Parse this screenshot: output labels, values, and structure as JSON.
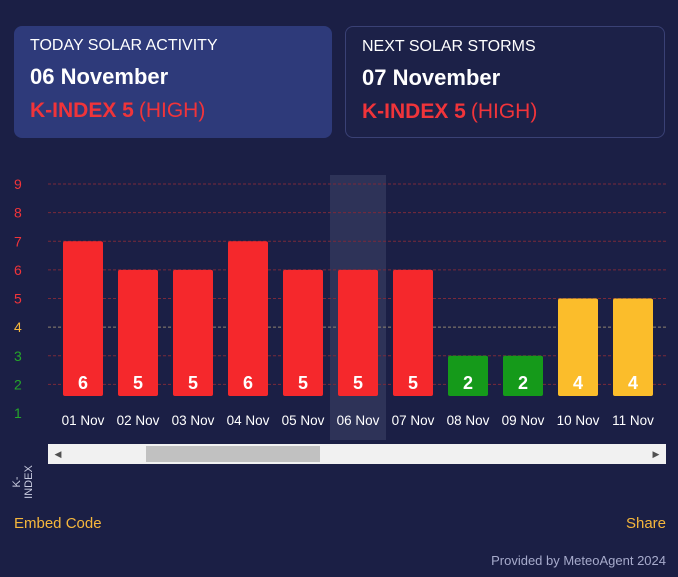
{
  "today": {
    "label": "TODAY SOLAR ACTIVITY",
    "date": "06 November",
    "kindex": "K-INDEX 5",
    "level": "(HIGH)"
  },
  "next": {
    "label": "NEXT SOLAR STORMS",
    "date": "07 November",
    "kindex": "K-INDEX 5",
    "level": "(HIGH)"
  },
  "colors": {
    "high": "#f5282c",
    "moderate": "#fbbd2b",
    "low": "#159a1a",
    "highlight": "#2e3358"
  },
  "chart_data": {
    "type": "bar",
    "ylabel": "K-INDEX",
    "ylim": [
      1,
      9
    ],
    "yticks": [
      {
        "value": 9,
        "color": "#f0343a"
      },
      {
        "value": 8,
        "color": "#f0343a"
      },
      {
        "value": 7,
        "color": "#f0343a"
      },
      {
        "value": 6,
        "color": "#f0343a"
      },
      {
        "value": 5,
        "color": "#f0343a"
      },
      {
        "value": 4,
        "color": "#f6b73c"
      },
      {
        "value": 3,
        "color": "#25a62a"
      },
      {
        "value": 2,
        "color": "#25a62a"
      },
      {
        "value": 1,
        "color": "#25a62a"
      }
    ],
    "categories": [
      "01 Nov",
      "02 Nov",
      "03 Nov",
      "04 Nov",
      "05 Nov",
      "06 Nov",
      "07 Nov",
      "08 Nov",
      "09 Nov",
      "10 Nov",
      "11 Nov"
    ],
    "values": [
      6,
      5,
      5,
      6,
      5,
      5,
      5,
      2,
      2,
      4,
      4
    ],
    "highlighted": "06 Nov"
  },
  "links": {
    "embed": "Embed Code",
    "share": "Share"
  },
  "credit": "Provided by MeteoAgent 2024"
}
